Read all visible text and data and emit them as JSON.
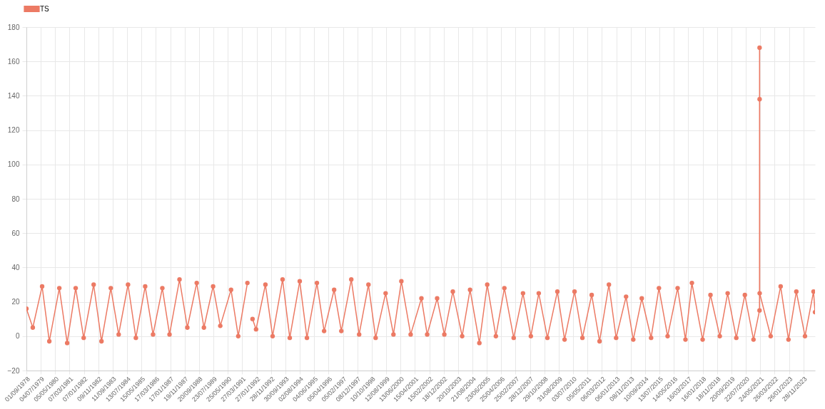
{
  "chart_data": {
    "type": "line",
    "x": [
      "1978-09-01",
      "1979-01-15",
      "1979-08-01",
      "1980-01-01",
      "1980-08-01",
      "1981-01-15",
      "1981-07-15",
      "1982-01-01",
      "1982-08-01",
      "1983-01-15",
      "1983-08-01",
      "1984-01-15",
      "1984-08-01",
      "1985-01-15",
      "1985-08-01",
      "1986-01-15",
      "1986-08-01",
      "1987-01-01",
      "1987-08-01",
      "1988-01-15",
      "1988-08-01",
      "1989-01-01",
      "1989-07-15",
      "1989-12-15",
      "1990-08-01",
      "1991-01-01",
      "1991-07-15",
      "1991-09-15",
      "1991-11-01",
      "1992-01-15",
      "1992-08-01",
      "1993-01-01",
      "1993-08-01",
      "1994-01-01",
      "1994-08-01",
      "1995-01-01",
      "1995-08-01",
      "1996-01-01",
      "1996-08-01",
      "1997-01-01",
      "1997-08-01",
      "1998-01-15",
      "1998-08-01",
      "1999-01-01",
      "1999-08-01",
      "2000-01-15",
      "2000-07-01",
      "2001-01-15",
      "2001-09-01",
      "2002-01-01",
      "2002-08-01",
      "2003-01-01",
      "2003-07-01",
      "2004-01-15",
      "2004-07-01",
      "2005-01-15",
      "2005-07-01",
      "2006-01-01",
      "2006-07-01",
      "2007-01-15",
      "2007-08-01",
      "2008-01-15",
      "2008-07-01",
      "2009-01-01",
      "2009-08-01",
      "2010-01-01",
      "2010-08-01",
      "2011-01-15",
      "2011-08-01",
      "2012-01-15",
      "2012-08-01",
      "2013-01-01",
      "2013-08-01",
      "2014-01-01",
      "2014-07-01",
      "2015-01-15",
      "2015-07-01",
      "2016-01-01",
      "2016-08-01",
      "2017-01-15",
      "2017-06-01",
      "2018-01-15",
      "2018-07-01",
      "2019-01-15",
      "2019-07-01",
      "2020-01-01",
      "2020-07-01",
      "2021-01-01",
      "2021-05-09",
      "2021-05-10",
      "2021-05-11",
      "2021-05-12",
      "2022-01-01",
      "2022-08-01",
      "2023-01-15",
      "2023-07-01",
      "2024-01-01",
      "2024-07-01",
      "2024-08-01"
    ],
    "series": [
      {
        "name": "TS",
        "color": "#ec7a64",
        "values": [
          16,
          5,
          29,
          -3,
          28,
          -4,
          28,
          -1,
          30,
          -3,
          28,
          1,
          30,
          -1,
          29,
          1,
          28,
          1,
          33,
          5,
          31,
          5,
          29,
          6,
          27,
          0,
          31,
          null,
          10,
          4,
          30,
          0,
          33,
          -1,
          32,
          -1,
          31,
          3,
          27,
          3,
          33,
          1,
          30,
          -1,
          25,
          1,
          32,
          1,
          22,
          1,
          22,
          1,
          26,
          0,
          27,
          -4,
          30,
          0,
          28,
          -1,
          25,
          0,
          25,
          -1,
          26,
          -2,
          26,
          -1,
          24,
          -3,
          30,
          -1,
          23,
          -2,
          22,
          -1,
          28,
          0,
          28,
          -2,
          31,
          -2,
          24,
          0,
          25,
          -1,
          24,
          -2,
          15,
          168,
          138,
          25,
          0,
          29,
          -2,
          26,
          0,
          26,
          14
        ]
      }
    ],
    "xlim": [
      "1978-09-01",
      "2024-08-01"
    ],
    "xticks": [
      {
        "value": "1978-09-01",
        "label": "01/09/1978"
      },
      {
        "value": "1979-07-04",
        "label": "04/07/1979"
      },
      {
        "value": "1980-05-05",
        "label": "05/05/1980"
      },
      {
        "value": "1981-03-07",
        "label": "07/03/1981"
      },
      {
        "value": "1982-01-07",
        "label": "07/01/1982"
      },
      {
        "value": "1982-11-09",
        "label": "09/11/1982"
      },
      {
        "value": "1983-09-11",
        "label": "11/09/1983"
      },
      {
        "value": "1984-07-13",
        "label": "13/07/1984"
      },
      {
        "value": "1985-05-15",
        "label": "15/05/1985"
      },
      {
        "value": "1986-03-17",
        "label": "17/03/1986"
      },
      {
        "value": "1987-01-17",
        "label": "17/01/1987"
      },
      {
        "value": "1987-11-19",
        "label": "19/11/1987"
      },
      {
        "value": "1988-09-20",
        "label": "20/09/1988"
      },
      {
        "value": "1989-07-23",
        "label": "23/07/1989"
      },
      {
        "value": "1990-05-25",
        "label": "25/05/1990"
      },
      {
        "value": "1991-03-27",
        "label": "27/03/1991"
      },
      {
        "value": "1992-01-27",
        "label": "27/01/1992"
      },
      {
        "value": "1992-11-28",
        "label": "28/11/1992"
      },
      {
        "value": "1993-09-30",
        "label": "30/09/1993"
      },
      {
        "value": "1994-08-02",
        "label": "02/08/1994"
      },
      {
        "value": "1995-06-04",
        "label": "04/06/1995"
      },
      {
        "value": "1996-04-05",
        "label": "05/04/1996"
      },
      {
        "value": "1997-02-05",
        "label": "05/02/1997"
      },
      {
        "value": "1997-12-08",
        "label": "08/12/1997"
      },
      {
        "value": "1998-10-10",
        "label": "10/10/1998"
      },
      {
        "value": "1999-08-12",
        "label": "12/08/1999"
      },
      {
        "value": "2000-06-13",
        "label": "13/06/2000"
      },
      {
        "value": "2001-04-15",
        "label": "15/04/2001"
      },
      {
        "value": "2002-02-15",
        "label": "15/02/2002"
      },
      {
        "value": "2002-12-18",
        "label": "18/12/2002"
      },
      {
        "value": "2003-10-20",
        "label": "20/10/2003"
      },
      {
        "value": "2004-08-21",
        "label": "21/08/2004"
      },
      {
        "value": "2005-06-23",
        "label": "23/06/2005"
      },
      {
        "value": "2006-04-25",
        "label": "25/04/2006"
      },
      {
        "value": "2007-02-25",
        "label": "25/02/2007"
      },
      {
        "value": "2007-12-28",
        "label": "28/12/2007"
      },
      {
        "value": "2008-10-29",
        "label": "29/10/2008"
      },
      {
        "value": "2009-08-31",
        "label": "31/08/2009"
      },
      {
        "value": "2010-07-03",
        "label": "03/07/2010"
      },
      {
        "value": "2011-05-05",
        "label": "05/05/2011"
      },
      {
        "value": "2012-03-06",
        "label": "06/03/2012"
      },
      {
        "value": "2013-01-06",
        "label": "06/01/2013"
      },
      {
        "value": "2013-11-08",
        "label": "08/11/2013"
      },
      {
        "value": "2014-09-10",
        "label": "10/09/2014"
      },
      {
        "value": "2015-07-13",
        "label": "13/07/2015"
      },
      {
        "value": "2016-05-14",
        "label": "14/05/2016"
      },
      {
        "value": "2017-03-16",
        "label": "16/03/2017"
      },
      {
        "value": "2018-01-16",
        "label": "16/01/2018"
      },
      {
        "value": "2018-11-18",
        "label": "18/11/2018"
      },
      {
        "value": "2019-09-20",
        "label": "20/09/2019"
      },
      {
        "value": "2020-07-22",
        "label": "22/07/2020"
      },
      {
        "value": "2021-05-24",
        "label": "24/05/2021"
      },
      {
        "value": "2022-03-26",
        "label": "26/03/2022"
      },
      {
        "value": "2023-01-26",
        "label": "26/01/2023"
      },
      {
        "value": "2023-11-28",
        "label": "28/11/2023"
      }
    ],
    "ylim": [
      -20,
      180
    ],
    "yticks": [
      -20,
      0,
      20,
      40,
      60,
      80,
      100,
      120,
      140,
      160,
      180
    ],
    "grid": true,
    "legend": "top",
    "marker": "circle",
    "line_style": "solid"
  }
}
